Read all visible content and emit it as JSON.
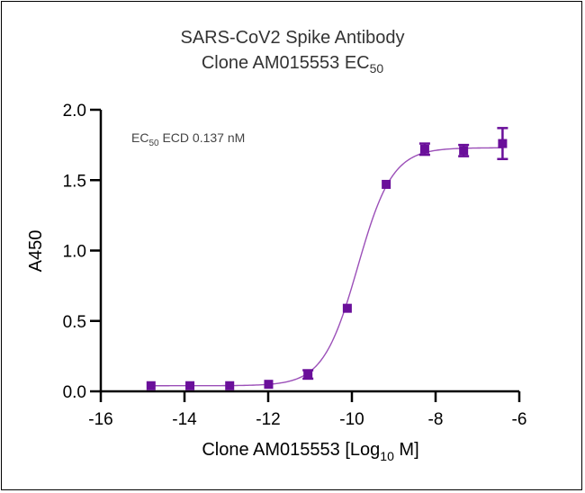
{
  "chart_data": {
    "type": "scatter",
    "title": "SARS-CoV2 Spike Antibody",
    "subtitle_main": "Clone AM015553 EC",
    "subtitle_sub": "50",
    "xlabel_main": "Clone AM015553 [Log",
    "xlabel_sub": "10",
    "xlabel_end": " M]",
    "ylabel": "A450",
    "xlim": [
      -16,
      -6
    ],
    "ylim": [
      0,
      2.0
    ],
    "xticks": [
      "-16",
      "-14",
      "-12",
      "-10",
      "-8",
      "-6"
    ],
    "yticks": [
      "0.0",
      "0.5",
      "1.0",
      "1.5",
      "2.0"
    ],
    "grid": false,
    "legend": null,
    "annotation": {
      "prefix": "EC",
      "sub": "50",
      "text": " ECD 0.137 nM"
    },
    "series": [
      {
        "name": "Clone AM015553",
        "color": "#6a0f9a",
        "curve_color": "#9b4fb8",
        "marker": "square",
        "x": [
          -14.8,
          -13.87,
          -12.92,
          -11.99,
          -11.05,
          -10.11,
          -9.18,
          -8.26,
          -7.33,
          -6.4
        ],
        "y": [
          0.04,
          0.04,
          0.04,
          0.05,
          0.12,
          0.59,
          1.47,
          1.72,
          1.71,
          1.76
        ],
        "error": [
          0.01,
          0.01,
          0.01,
          0.01,
          0.03,
          0.01,
          0.01,
          0.04,
          0.04,
          0.11
        ],
        "fit": {
          "model": "4PL",
          "bottom": 0.04,
          "top": 1.73,
          "logEC50": -9.86,
          "hill": 1.05
        }
      }
    ]
  }
}
